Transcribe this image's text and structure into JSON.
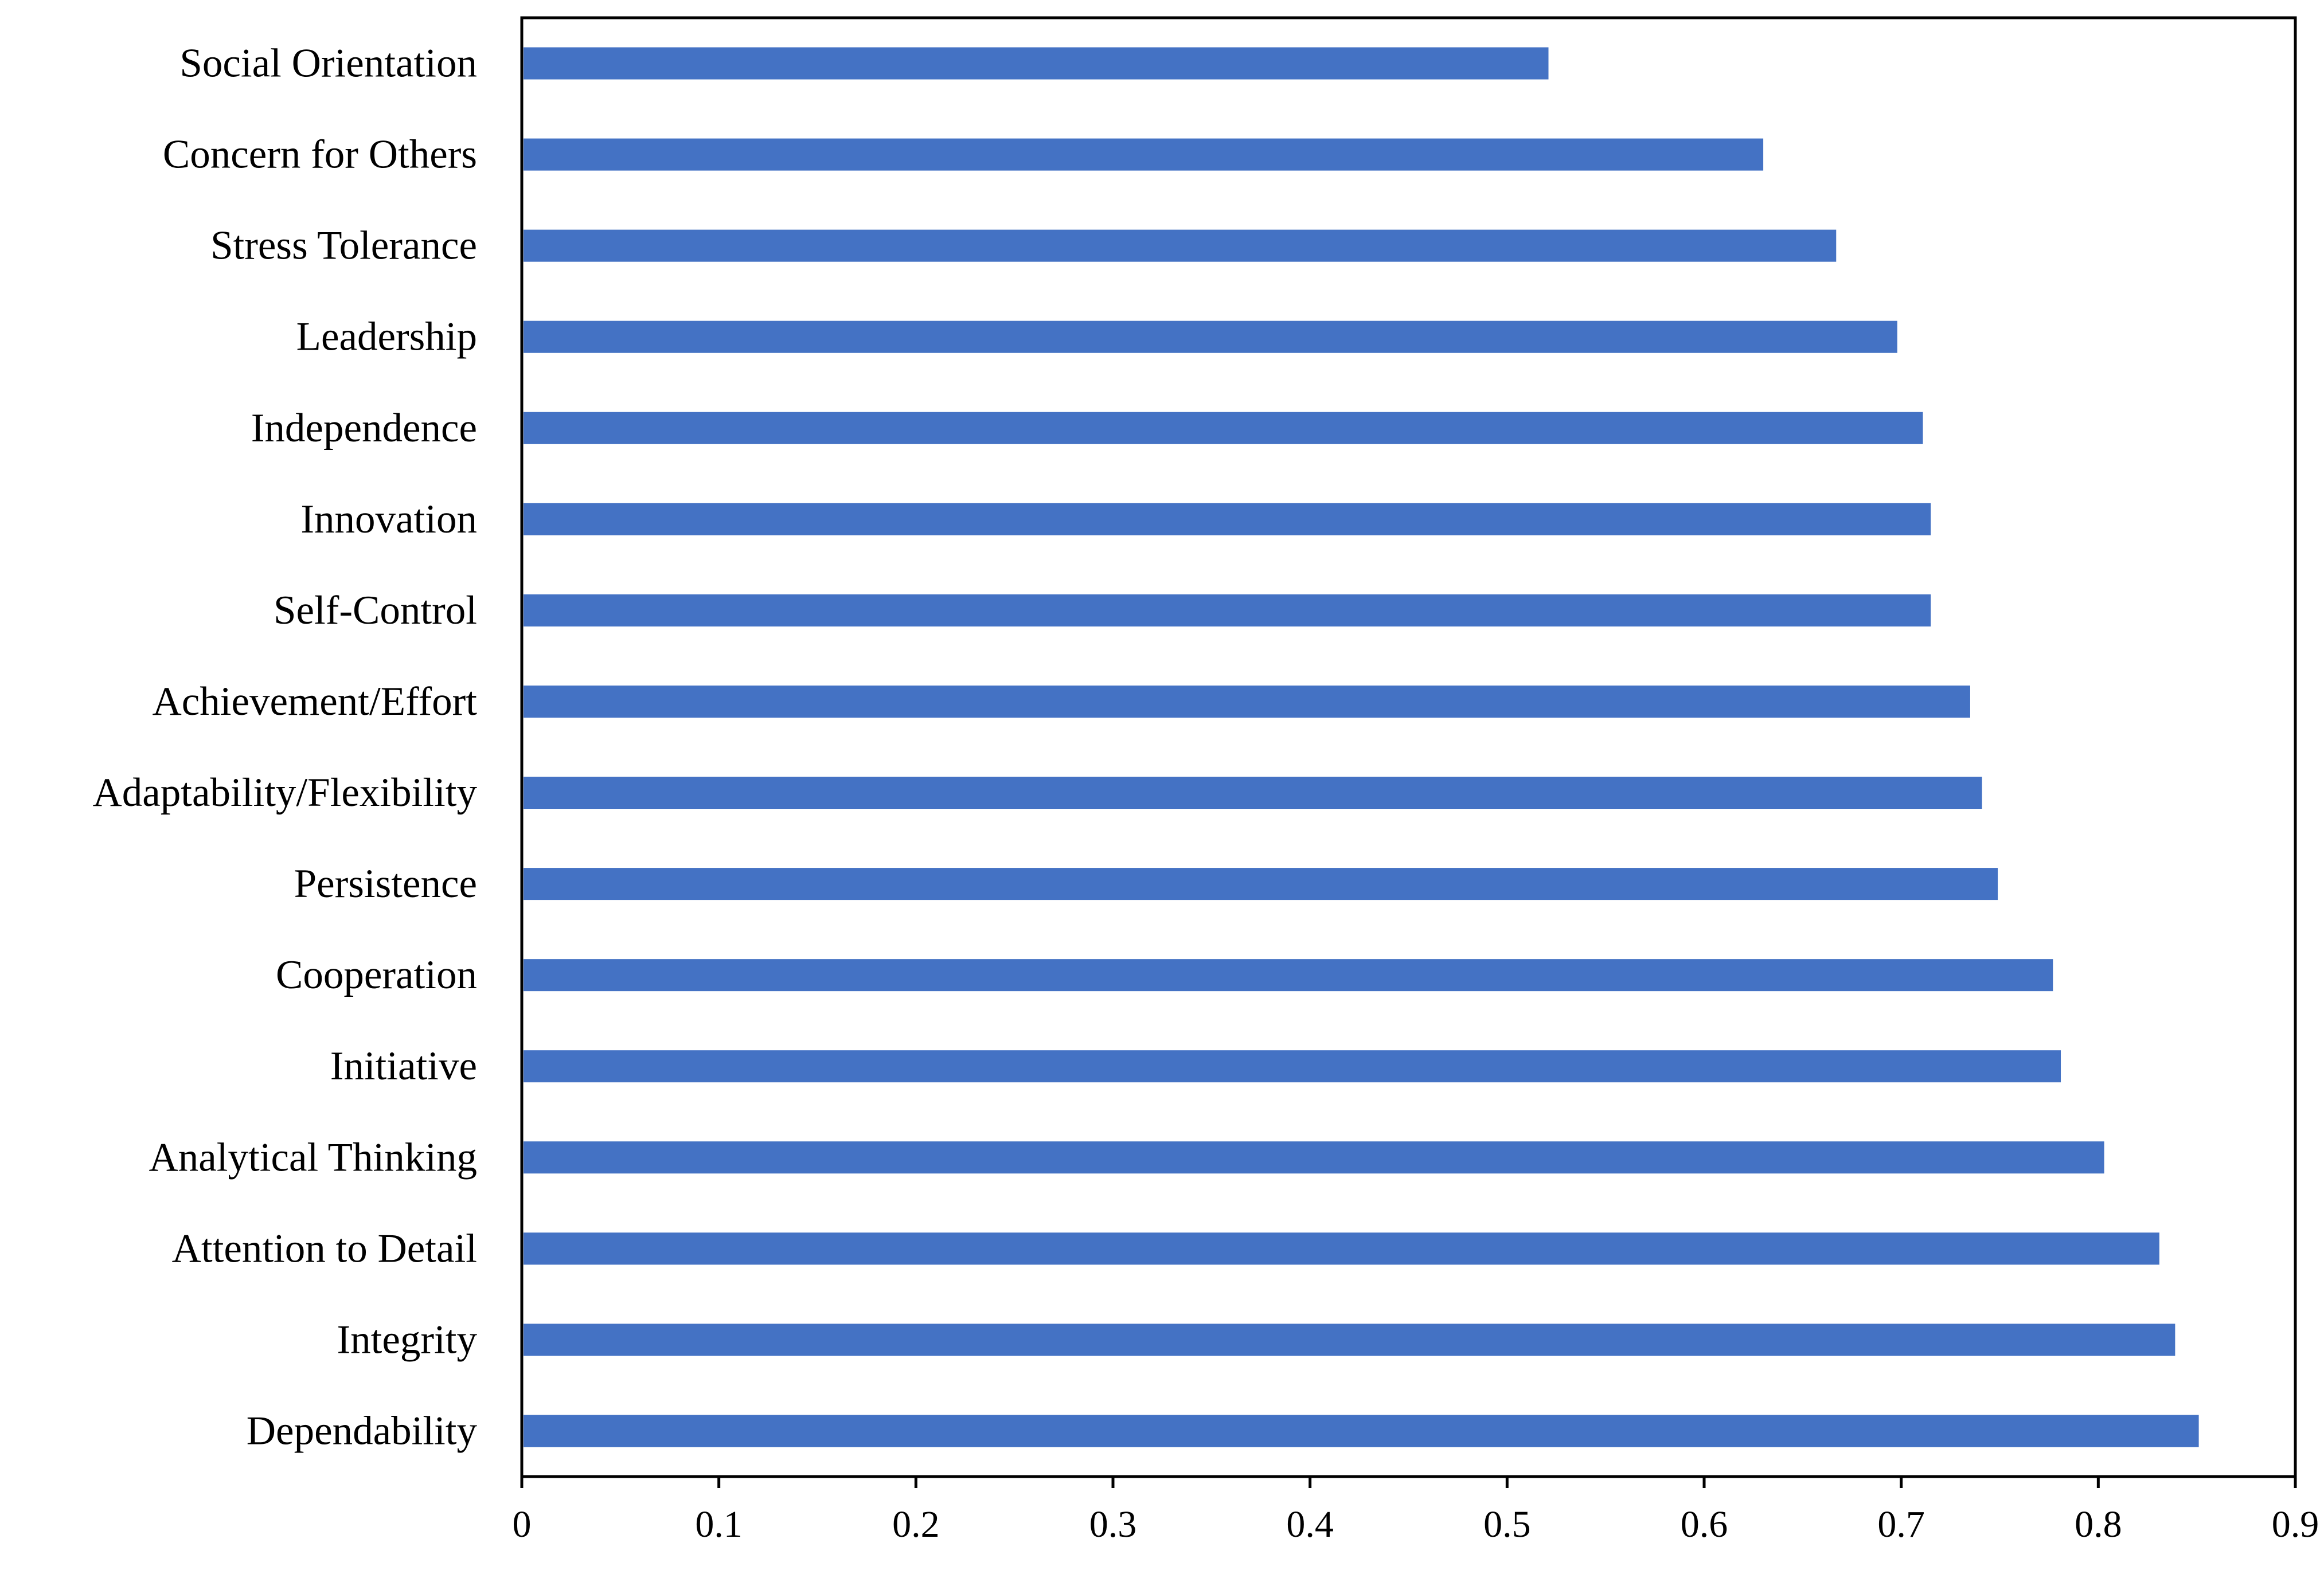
{
  "chart_data": {
    "type": "bar",
    "orientation": "horizontal",
    "categories": [
      "Social Orientation",
      "Concern for Others",
      "Stress Tolerance",
      "Leadership",
      "Independence",
      "Innovation",
      "Self-Control",
      "Achievement/Effort",
      "Adaptability/Flexibility",
      "Persistence",
      "Cooperation",
      "Initiative",
      "Analytical Thinking",
      "Attention to Detail",
      "Integrity",
      "Dependability"
    ],
    "values": [
      0.521,
      0.63,
      0.667,
      0.698,
      0.711,
      0.715,
      0.715,
      0.735,
      0.741,
      0.749,
      0.777,
      0.781,
      0.803,
      0.831,
      0.839,
      0.851
    ],
    "x_ticks": [
      "0",
      "0.1",
      "0.2",
      "0.3",
      "0.4",
      "0.5",
      "0.6",
      "0.7",
      "0.8",
      "0.9"
    ],
    "xlim": [
      0,
      0.9
    ],
    "title": "",
    "xlabel": "",
    "ylabel": "",
    "grid": false,
    "legend": "none",
    "bar_color": "#4472C4"
  }
}
